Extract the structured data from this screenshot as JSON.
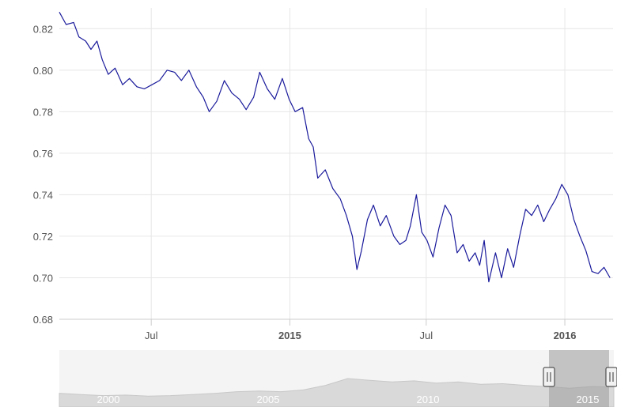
{
  "chart_data": {
    "type": "line",
    "title": "",
    "xlabel": "",
    "ylabel": "",
    "ylim": [
      0.68,
      0.83
    ],
    "y_ticks": [
      "0.82",
      "0.80",
      "0.78",
      "0.76",
      "0.74",
      "0.72",
      "0.70",
      "0.68"
    ],
    "x_range": [
      "2014-03-01",
      "2016-03-05"
    ],
    "x_ticks": [
      {
        "date": "2014-07-01",
        "label": "Jul",
        "bold": false
      },
      {
        "date": "2015-01-01",
        "label": "2015",
        "bold": true
      },
      {
        "date": "2015-07-01",
        "label": "Jul",
        "bold": false
      },
      {
        "date": "2016-01-01",
        "label": "2016",
        "bold": true
      }
    ],
    "grid": true,
    "line_color": "#1a1a9c",
    "series": [
      {
        "points": [
          [
            "2014-03-01",
            0.828
          ],
          [
            "2014-03-10",
            0.822
          ],
          [
            "2014-03-20",
            0.823
          ],
          [
            "2014-03-27",
            0.816
          ],
          [
            "2014-04-05",
            0.814
          ],
          [
            "2014-04-12",
            0.81
          ],
          [
            "2014-04-20",
            0.814
          ],
          [
            "2014-04-27",
            0.805
          ],
          [
            "2014-05-05",
            0.798
          ],
          [
            "2014-05-14",
            0.801
          ],
          [
            "2014-05-24",
            0.793
          ],
          [
            "2014-06-02",
            0.796
          ],
          [
            "2014-06-12",
            0.792
          ],
          [
            "2014-06-22",
            0.791
          ],
          [
            "2014-07-02",
            0.793
          ],
          [
            "2014-07-12",
            0.795
          ],
          [
            "2014-07-22",
            0.8
          ],
          [
            "2014-08-01",
            0.799
          ],
          [
            "2014-08-10",
            0.795
          ],
          [
            "2014-08-20",
            0.8
          ],
          [
            "2014-08-30",
            0.792
          ],
          [
            "2014-09-08",
            0.787
          ],
          [
            "2014-09-16",
            0.78
          ],
          [
            "2014-09-26",
            0.785
          ],
          [
            "2014-10-06",
            0.795
          ],
          [
            "2014-10-16",
            0.789
          ],
          [
            "2014-10-26",
            0.786
          ],
          [
            "2014-11-04",
            0.781
          ],
          [
            "2014-11-14",
            0.787
          ],
          [
            "2014-11-22",
            0.799
          ],
          [
            "2014-12-02",
            0.791
          ],
          [
            "2014-12-12",
            0.786
          ],
          [
            "2014-12-22",
            0.796
          ],
          [
            "2014-12-31",
            0.786
          ],
          [
            "2015-01-08",
            0.78
          ],
          [
            "2015-01-18",
            0.782
          ],
          [
            "2015-01-26",
            0.767
          ],
          [
            "2015-02-01",
            0.763
          ],
          [
            "2015-02-07",
            0.748
          ],
          [
            "2015-02-17",
            0.752
          ],
          [
            "2015-02-27",
            0.743
          ],
          [
            "2015-03-09",
            0.738
          ],
          [
            "2015-03-17",
            0.73
          ],
          [
            "2015-03-25",
            0.72
          ],
          [
            "2015-03-31",
            0.704
          ],
          [
            "2015-04-06",
            0.713
          ],
          [
            "2015-04-14",
            0.728
          ],
          [
            "2015-04-22",
            0.735
          ],
          [
            "2015-05-01",
            0.725
          ],
          [
            "2015-05-09",
            0.73
          ],
          [
            "2015-05-19",
            0.72
          ],
          [
            "2015-05-27",
            0.716
          ],
          [
            "2015-06-04",
            0.718
          ],
          [
            "2015-06-10",
            0.725
          ],
          [
            "2015-06-18",
            0.74
          ],
          [
            "2015-06-25",
            0.722
          ],
          [
            "2015-07-02",
            0.718
          ],
          [
            "2015-07-10",
            0.71
          ],
          [
            "2015-07-18",
            0.724
          ],
          [
            "2015-07-26",
            0.735
          ],
          [
            "2015-08-03",
            0.73
          ],
          [
            "2015-08-11",
            0.712
          ],
          [
            "2015-08-19",
            0.716
          ],
          [
            "2015-08-27",
            0.708
          ],
          [
            "2015-09-04",
            0.712
          ],
          [
            "2015-09-10",
            0.706
          ],
          [
            "2015-09-16",
            0.718
          ],
          [
            "2015-09-22",
            0.698
          ],
          [
            "2015-10-01",
            0.712
          ],
          [
            "2015-10-09",
            0.7
          ],
          [
            "2015-10-17",
            0.714
          ],
          [
            "2015-10-25",
            0.705
          ],
          [
            "2015-11-02",
            0.72
          ],
          [
            "2015-11-10",
            0.733
          ],
          [
            "2015-11-18",
            0.73
          ],
          [
            "2015-11-26",
            0.735
          ],
          [
            "2015-12-04",
            0.727
          ],
          [
            "2015-12-12",
            0.733
          ],
          [
            "2015-12-20",
            0.738
          ],
          [
            "2015-12-28",
            0.745
          ],
          [
            "2016-01-05",
            0.74
          ],
          [
            "2016-01-13",
            0.728
          ],
          [
            "2016-01-21",
            0.72
          ],
          [
            "2016-01-29",
            0.713
          ],
          [
            "2016-02-06",
            0.703
          ],
          [
            "2016-02-14",
            0.702
          ],
          [
            "2016-02-22",
            0.705
          ],
          [
            "2016-03-01",
            0.7
          ]
        ]
      }
    ],
    "navigator": {
      "x_labels": [
        "2000",
        "2005",
        "2010",
        "2015"
      ]
    }
  }
}
